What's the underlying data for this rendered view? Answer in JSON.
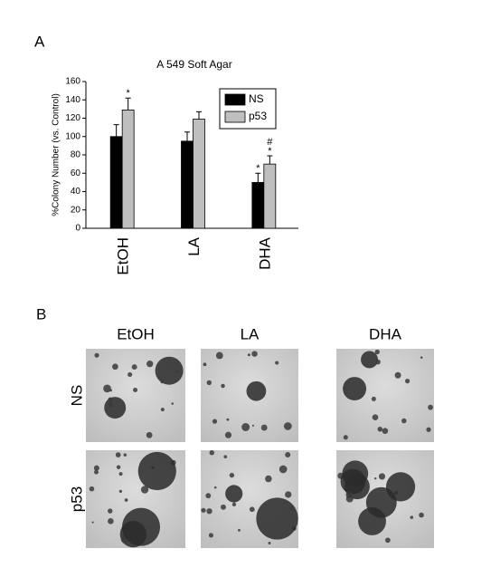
{
  "panel_a": {
    "label": "A"
  },
  "chart_data": {
    "type": "bar",
    "title": "A 549 Soft Agar",
    "y_label": "%Colony Number (vs. Control)",
    "categories": [
      "EtOH",
      "LA",
      "DHA"
    ],
    "series": [
      {
        "name": "NS",
        "color": "#000000",
        "values": [
          100,
          95,
          50
        ],
        "errors": [
          13,
          10,
          10
        ],
        "annotations": [
          [],
          [],
          [
            "*"
          ]
        ]
      },
      {
        "name": "p53",
        "color": "#bfbfbf",
        "values": [
          129,
          119,
          70
        ],
        "errors": [
          13,
          8,
          9
        ],
        "annotations": [
          [
            "*"
          ],
          [],
          [
            "#",
            "*"
          ]
        ]
      }
    ],
    "ylim": [
      0,
      160
    ],
    "yticks": [
      0,
      20,
      40,
      60,
      80,
      100,
      120,
      140,
      160
    ],
    "grid": false,
    "legend": "upper right"
  },
  "panel_b": {
    "label": "B",
    "columns": [
      "EtOH",
      "LA",
      "DHA"
    ],
    "rows": [
      "NS",
      "p53"
    ]
  }
}
